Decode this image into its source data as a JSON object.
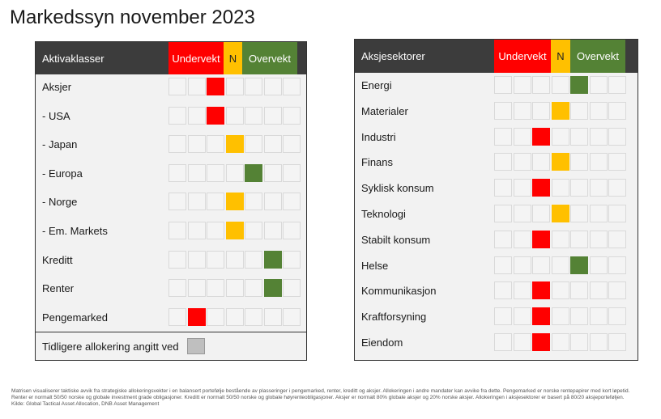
{
  "title": "Markedssyn november 2023",
  "colors": {
    "under": "#ff0000",
    "neutral": "#ffc000",
    "over": "#548235",
    "previous": "#bfbfbf",
    "header": "#3c3c3c"
  },
  "left_panel": {
    "header": "Aktivaklasser",
    "under_label": "Undervekt",
    "neutral_label": "N",
    "over_label": "Overvekt",
    "rows": [
      {
        "label": "Aksjer",
        "position": 3
      },
      {
        "label": "- USA",
        "position": 3
      },
      {
        "label": "- Japan",
        "position": 4
      },
      {
        "label": "- Europa",
        "position": 5
      },
      {
        "label": "- Norge",
        "position": 4
      },
      {
        "label": "- Em. Markets",
        "position": 4
      },
      {
        "label": "Kreditt",
        "position": 6
      },
      {
        "label": "Renter",
        "position": 6
      },
      {
        "label": "Pengemarked",
        "position": 2
      }
    ],
    "legend_label": "Tidligere allokering angitt ved"
  },
  "right_panel": {
    "header": "Aksjesektorer",
    "under_label": "Undervekt",
    "neutral_label": "N",
    "over_label": "Overvekt",
    "rows": [
      {
        "label": "Energi",
        "position": 5
      },
      {
        "label": "Materialer",
        "position": 4
      },
      {
        "label": "Industri",
        "position": 3
      },
      {
        "label": "Finans",
        "position": 4
      },
      {
        "label": "Syklisk konsum",
        "position": 3
      },
      {
        "label": "Teknologi",
        "position": 4
      },
      {
        "label": "Stabilt konsum",
        "position": 3
      },
      {
        "label": "Helse",
        "position": 5
      },
      {
        "label": "Kommunikasjon",
        "position": 3
      },
      {
        "label": "Kraftforsyning",
        "position": 3
      },
      {
        "label": "Eiendom",
        "position": 3
      }
    ]
  },
  "footnote": {
    "line1": "Matrisen visualiserer taktiske avvik fra strategiske allokeringsvekter i en balansert portefølje bestående av plasseringer i pengemarked, renter, kreditt og aksjer. Allokeringen i andre mandater kan avvike fra dette. Pengemarked er norske rentepapirer med kort løpetid.",
    "line2": "Renter er normalt 50/50 norske og globale investment grade obligasjoner. Kreditt er normalt 50/50 norske og globale høyrenteobligasjoner. Aksjer er normalt 80% globale aksjer og 20% norske aksjer. Allokeringen i aksjesektorer er basert på 80/20 aksjeporteføljen.",
    "line3": "Kilde: Global Tactical Asset Allocation, DNB Asset Management"
  }
}
